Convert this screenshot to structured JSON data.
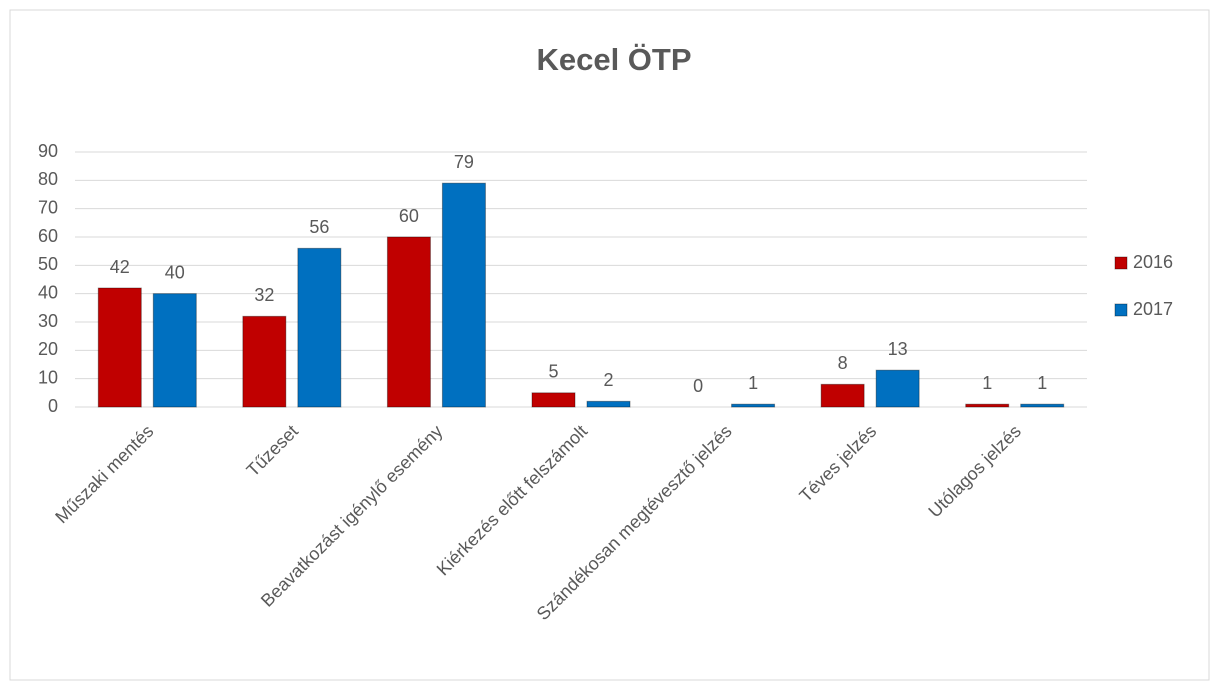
{
  "chart_data": {
    "type": "bar",
    "title": "Kecel ÖTP",
    "categories": [
      "Műszaki mentés",
      "Tűzeset",
      "Beavatkozást igénylő esemény",
      "Kiérkezés előtt felszámolt",
      "Szándékosan megtévesztő jelzés",
      "Téves jelzés",
      "Utólagos jelzés"
    ],
    "series": [
      {
        "name": "2016",
        "color": "#c00000",
        "values": [
          42,
          32,
          60,
          5,
          0,
          8,
          1
        ]
      },
      {
        "name": "2017",
        "color": "#0070c0",
        "values": [
          40,
          56,
          79,
          2,
          1,
          13,
          1
        ]
      }
    ],
    "ylim": [
      0,
      90
    ],
    "yticks": [
      0,
      10,
      20,
      30,
      40,
      50,
      60,
      70,
      80,
      90
    ],
    "grid": true,
    "legend": "right"
  }
}
